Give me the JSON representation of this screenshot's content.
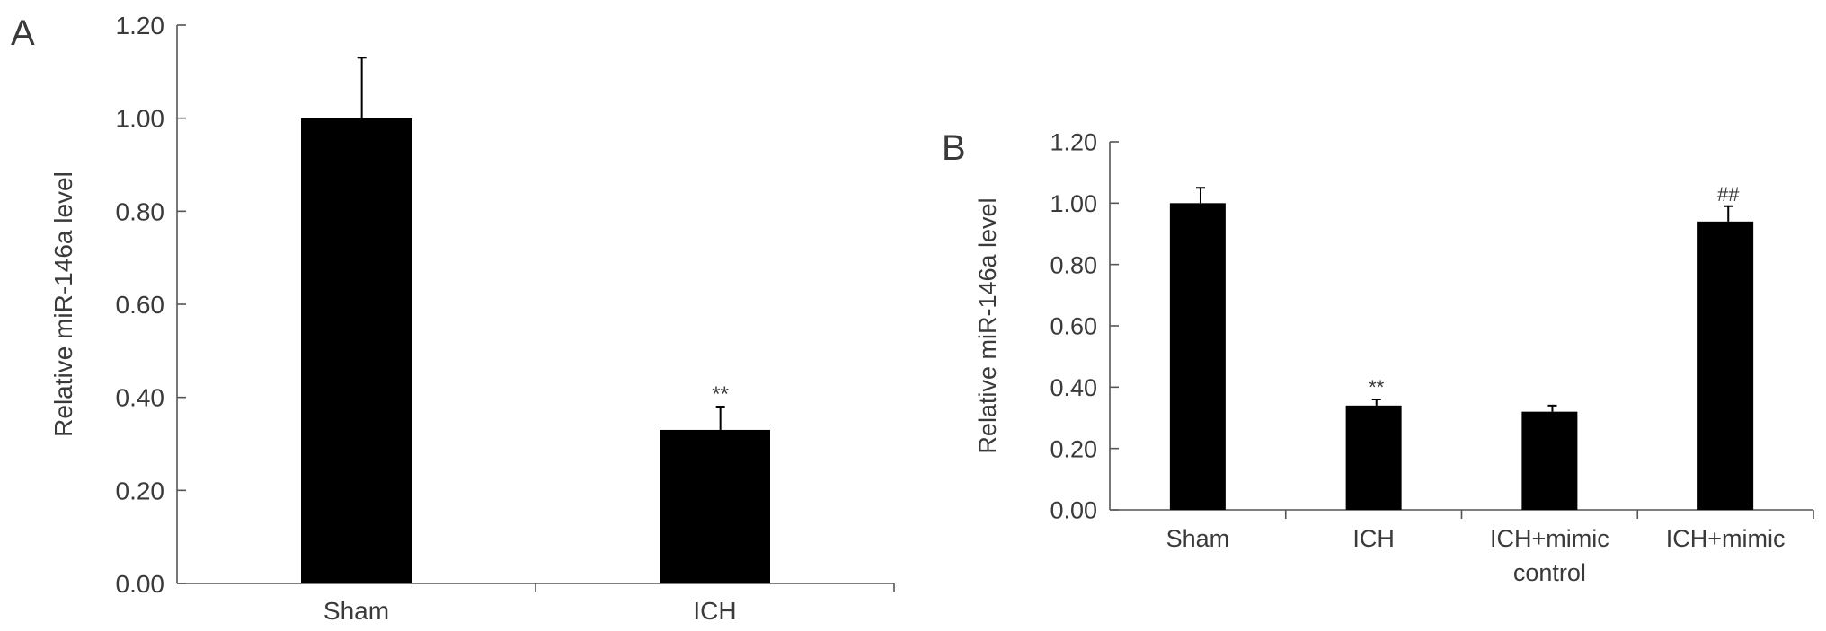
{
  "panels": [
    {
      "label": "A",
      "chart_data": {
        "type": "bar",
        "ylabel": "Relative miR-146a level",
        "xlabel": "",
        "categories": [
          [
            "Sham"
          ],
          [
            "ICH"
          ]
        ],
        "values": [
          1.0,
          0.33
        ],
        "errors": [
          0.13,
          0.05
        ],
        "annotations": [
          "",
          "**"
        ],
        "ylim": [
          0,
          1.2
        ],
        "yticks": [
          "0.00",
          "0.20",
          "0.40",
          "0.60",
          "0.80",
          "1.00",
          "1.20"
        ],
        "bar_color": "#000000",
        "grid": false
      }
    },
    {
      "label": "B",
      "chart_data": {
        "type": "bar",
        "ylabel": "Relative miR-146a level",
        "xlabel": "",
        "categories": [
          [
            "Sham"
          ],
          [
            "ICH"
          ],
          [
            "ICH+mimic",
            "control"
          ],
          [
            "ICH+mimic"
          ]
        ],
        "values": [
          1.0,
          0.34,
          0.32,
          0.94
        ],
        "errors": [
          0.05,
          0.02,
          0.02,
          0.05
        ],
        "annotations": [
          "",
          "**",
          "",
          "##"
        ],
        "ylim": [
          0,
          1.2
        ],
        "yticks": [
          "0.00",
          "0.20",
          "0.40",
          "0.60",
          "0.80",
          "1.00",
          "1.20"
        ],
        "bar_color": "#000000",
        "grid": false
      }
    }
  ]
}
